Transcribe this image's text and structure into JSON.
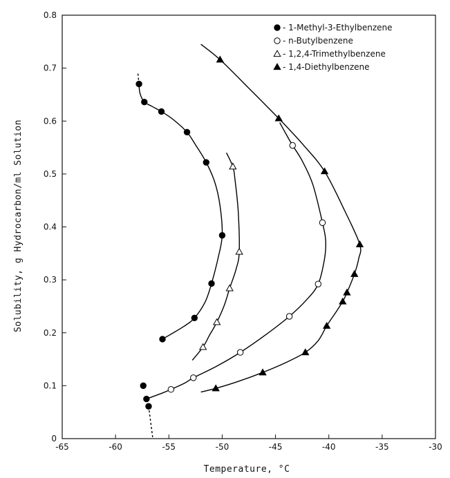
{
  "chart_data": {
    "type": "scatter",
    "title": "",
    "xlabel": "Temperature, °C",
    "ylabel": "Solubility, g Hydrocarbon/ml Solution",
    "xlim": [
      -65,
      -30
    ],
    "ylim": [
      0,
      0.8
    ],
    "xticks": [
      -65,
      -60,
      -55,
      -50,
      -45,
      -40,
      -35,
      -30
    ],
    "xtick_labels": [
      "-65",
      "-60",
      "-55",
      "-50",
      "-45",
      "-40",
      "-35",
      "-30"
    ],
    "yticks": [
      0,
      0.1,
      0.2,
      0.3,
      0.4,
      0.5,
      0.6,
      0.7,
      0.8
    ],
    "ytick_labels": [
      "0",
      "0.1",
      "0.2",
      "0.3",
      "0.4",
      "0.5",
      "0.6",
      "0.7",
      "0.8"
    ],
    "grid": false,
    "legend_position": "top-right",
    "series": [
      {
        "name": "1-Methyl-3-Ethylbenzene",
        "marker": "filled-circle",
        "color": "#000000",
        "points": [
          [
            -55.6,
            0.188
          ],
          [
            -52.6,
            0.228
          ],
          [
            -51.0,
            0.293
          ],
          [
            -50.0,
            0.384
          ],
          [
            -51.5,
            0.522
          ],
          [
            -53.3,
            0.579
          ],
          [
            -55.7,
            0.618
          ],
          [
            -57.3,
            0.636
          ],
          [
            -57.8,
            0.67
          ]
        ],
        "points2": [
          [
            -57.4,
            0.1
          ],
          [
            -57.1,
            0.075
          ],
          [
            -56.9,
            0.061
          ]
        ],
        "curve": [
          [
            -55.6,
            0.188
          ],
          [
            -53.6,
            0.212
          ],
          [
            -52.6,
            0.228
          ],
          [
            -51.6,
            0.258
          ],
          [
            -51.0,
            0.293
          ],
          [
            -50.4,
            0.34
          ],
          [
            -50.0,
            0.384
          ],
          [
            -50.2,
            0.44
          ],
          [
            -50.7,
            0.485
          ],
          [
            -51.5,
            0.522
          ],
          [
            -52.5,
            0.555
          ],
          [
            -53.3,
            0.579
          ],
          [
            -54.6,
            0.603
          ],
          [
            -55.7,
            0.618
          ],
          [
            -56.6,
            0.628
          ],
          [
            -57.3,
            0.636
          ],
          [
            -57.7,
            0.652
          ],
          [
            -57.8,
            0.67
          ]
        ],
        "dashed": [
          [
            [
              -57.8,
              0.67
            ],
            [
              -57.9,
              0.69
            ]
          ],
          [
            [
              -56.9,
              0.061
            ],
            [
              -56.5,
              0.0
            ]
          ]
        ]
      },
      {
        "name": "n-Butylbenzene",
        "marker": "open-circle",
        "color": "#000000",
        "points": [
          [
            -54.8,
            0.093
          ],
          [
            -52.7,
            0.115
          ],
          [
            -48.3,
            0.163
          ],
          [
            -43.7,
            0.231
          ],
          [
            -41.0,
            0.292
          ],
          [
            -40.6,
            0.408
          ],
          [
            -43.4,
            0.554
          ]
        ],
        "curve": [
          [
            -57.1,
            0.075
          ],
          [
            -55.5,
            0.087
          ],
          [
            -54.8,
            0.093
          ],
          [
            -53.5,
            0.105
          ],
          [
            -52.7,
            0.115
          ],
          [
            -50.5,
            0.137
          ],
          [
            -48.3,
            0.163
          ],
          [
            -46.0,
            0.195
          ],
          [
            -43.7,
            0.231
          ],
          [
            -42.1,
            0.262
          ],
          [
            -41.0,
            0.292
          ],
          [
            -40.4,
            0.34
          ],
          [
            -40.3,
            0.375
          ],
          [
            -40.6,
            0.408
          ],
          [
            -41.5,
            0.48
          ],
          [
            -42.5,
            0.525
          ],
          [
            -43.4,
            0.554
          ],
          [
            -44.0,
            0.575
          ],
          [
            -44.6,
            0.597
          ]
        ]
      },
      {
        "name": "1,2,4-Trimethylbenzene",
        "marker": "open-triangle",
        "color": "#000000",
        "points": [
          [
            -51.8,
            0.173
          ],
          [
            -50.5,
            0.22
          ],
          [
            -49.3,
            0.284
          ],
          [
            -48.4,
            0.353
          ],
          [
            -49.0,
            0.514
          ]
        ],
        "curve": [
          [
            -52.8,
            0.148
          ],
          [
            -51.8,
            0.173
          ],
          [
            -51.2,
            0.195
          ],
          [
            -50.5,
            0.22
          ],
          [
            -49.8,
            0.252
          ],
          [
            -49.3,
            0.284
          ],
          [
            -48.7,
            0.32
          ],
          [
            -48.4,
            0.353
          ],
          [
            -48.5,
            0.43
          ],
          [
            -48.8,
            0.49
          ],
          [
            -49.0,
            0.514
          ],
          [
            -49.6,
            0.54
          ]
        ]
      },
      {
        "name": "1,4-Diethylbenzene",
        "marker": "filled-triangle",
        "color": "#000000",
        "points": [
          [
            -50.6,
            0.095
          ],
          [
            -46.2,
            0.125
          ],
          [
            -42.2,
            0.163
          ],
          [
            -40.2,
            0.213
          ],
          [
            -38.7,
            0.259
          ],
          [
            -38.3,
            0.276
          ],
          [
            -37.6,
            0.311
          ],
          [
            -37.1,
            0.367
          ],
          [
            -40.4,
            0.505
          ],
          [
            -44.7,
            0.605
          ],
          [
            -50.2,
            0.716
          ]
        ],
        "curve": [
          [
            -52.0,
            0.088
          ],
          [
            -50.6,
            0.095
          ],
          [
            -48.5,
            0.108
          ],
          [
            -46.2,
            0.125
          ],
          [
            -44.1,
            0.143
          ],
          [
            -42.2,
            0.163
          ],
          [
            -41.0,
            0.185
          ],
          [
            -40.2,
            0.213
          ],
          [
            -39.4,
            0.237
          ],
          [
            -38.7,
            0.259
          ],
          [
            -38.3,
            0.276
          ],
          [
            -37.6,
            0.311
          ],
          [
            -37.2,
            0.34
          ],
          [
            -37.1,
            0.367
          ],
          [
            -38.5,
            0.43
          ],
          [
            -40.4,
            0.505
          ],
          [
            -42.4,
            0.555
          ],
          [
            -44.7,
            0.605
          ],
          [
            -47.4,
            0.66
          ],
          [
            -50.2,
            0.716
          ],
          [
            -52.0,
            0.745
          ]
        ]
      }
    ]
  }
}
